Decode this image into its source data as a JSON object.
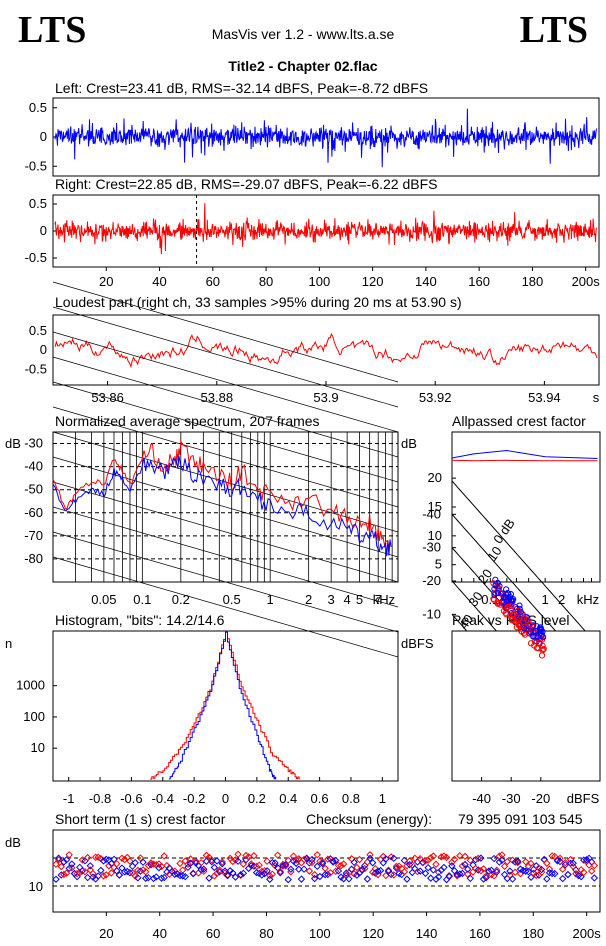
{
  "header": {
    "logo_left": "LTS",
    "logo_right": "LTS",
    "app_title": "MasVis ver 1.2 - www.lts.a.se",
    "file_title": "Title2 - Chapter 02.flac"
  },
  "chart_data": [
    {
      "id": "left-waveform",
      "type": "line",
      "title": "Left: Crest=23.41 dB, RMS=-32.14 dBFS, Peak=-8.72 dBFS",
      "ylim": [
        -1,
        1
      ],
      "yticks": [
        "0.5",
        "0",
        "-0.5"
      ],
      "color": "#0000ff",
      "duration_s": 205
    },
    {
      "id": "right-waveform",
      "type": "line",
      "title": "Right: Crest=22.85 dB, RMS=-29.07 dBFS, Peak=-6.22 dBFS",
      "ylim": [
        -1,
        1
      ],
      "yticks": [
        "0.5",
        "0",
        "-0.5"
      ],
      "xticks": [
        "20",
        "40",
        "60",
        "80",
        "100",
        "120",
        "140",
        "160",
        "180",
        "200s"
      ],
      "marker_s": 53.9,
      "color": "#ff0000",
      "duration_s": 205
    },
    {
      "id": "loudest-part",
      "type": "line",
      "title": "Loudest part (right ch, 33 samples >95% during 20 ms at 53.90 s)",
      "xlim": [
        53.85,
        53.95
      ],
      "xticks": [
        "53.86",
        "53.88",
        "53.9",
        "53.92",
        "53.94"
      ],
      "xunit": "s",
      "yticks": [
        "0.5",
        "0",
        "-0.5"
      ],
      "color": "#ff0000"
    },
    {
      "id": "spectrum",
      "type": "line",
      "title": "Normalized average spectrum, 207 frames",
      "ylabel": "dB",
      "yticks": [
        "-30",
        "-40",
        "-50",
        "-60",
        "-70",
        "-80"
      ],
      "xticks": [
        "0.05",
        "0.1",
        "0.2",
        "0.5",
        "1",
        "2",
        "3",
        "4",
        "5",
        "7"
      ],
      "xunit": "kHz",
      "series": [
        {
          "color": "#ff0000",
          "points": [
            [
              0.02,
              -45
            ],
            [
              0.025,
              -58
            ],
            [
              0.03,
              -52
            ],
            [
              0.04,
              -46
            ],
            [
              0.05,
              -48
            ],
            [
              0.06,
              -36
            ],
            [
              0.07,
              -42
            ],
            [
              0.08,
              -48
            ],
            [
              0.1,
              -36
            ],
            [
              0.12,
              -34
            ],
            [
              0.15,
              -40
            ],
            [
              0.18,
              -37
            ],
            [
              0.2,
              -32
            ],
            [
              0.25,
              -38
            ],
            [
              0.3,
              -40
            ],
            [
              0.4,
              -44
            ],
            [
              0.5,
              -47
            ],
            [
              0.6,
              -42
            ],
            [
              0.8,
              -50
            ],
            [
              1,
              -52
            ],
            [
              1.5,
              -55
            ],
            [
              2,
              -53
            ],
            [
              3,
              -60
            ],
            [
              4,
              -62
            ],
            [
              5,
              -66
            ],
            [
              6,
              -64
            ],
            [
              7,
              -70
            ],
            [
              8,
              -74
            ],
            [
              9,
              -72
            ]
          ]
        },
        {
          "color": "#0000ff",
          "points": [
            [
              0.02,
              -47
            ],
            [
              0.025,
              -60
            ],
            [
              0.03,
              -55
            ],
            [
              0.04,
              -50
            ],
            [
              0.05,
              -52
            ],
            [
              0.06,
              -42
            ],
            [
              0.07,
              -45
            ],
            [
              0.08,
              -50
            ],
            [
              0.1,
              -40
            ],
            [
              0.12,
              -39
            ],
            [
              0.15,
              -42
            ],
            [
              0.18,
              -40
            ],
            [
              0.2,
              -38
            ],
            [
              0.25,
              -43
            ],
            [
              0.3,
              -44
            ],
            [
              0.4,
              -48
            ],
            [
              0.5,
              -50
            ],
            [
              0.6,
              -49
            ],
            [
              0.8,
              -54
            ],
            [
              1,
              -56
            ],
            [
              1.5,
              -60
            ],
            [
              2,
              -60
            ],
            [
              3,
              -65
            ],
            [
              4,
              -67
            ],
            [
              5,
              -70
            ],
            [
              6,
              -70
            ],
            [
              7,
              -73
            ],
            [
              8,
              -75
            ],
            [
              9,
              -74
            ]
          ]
        }
      ]
    },
    {
      "id": "allpassed-crest",
      "type": "line",
      "title": "Allpassed crest factor",
      "ylabel": "dB",
      "yticks": [
        "20",
        "15",
        "10",
        "5"
      ],
      "xticks": [
        "0.1",
        "1",
        "2"
      ],
      "xunit": "kHz",
      "series": [
        {
          "color": "#0000ff",
          "points": [
            [
              0.02,
              23.5
            ],
            [
              0.05,
              24.2
            ],
            [
              0.2,
              24.8
            ],
            [
              1,
              23.7
            ],
            [
              5,
              23.5
            ],
            [
              9,
              23.4
            ]
          ]
        },
        {
          "color": "#ff0000",
          "points": [
            [
              0.02,
              23.1
            ],
            [
              0.05,
              23.0
            ],
            [
              0.2,
              23.1
            ],
            [
              1,
              23.0
            ],
            [
              5,
              23.0
            ],
            [
              9,
              23.0
            ]
          ]
        }
      ]
    },
    {
      "id": "histogram",
      "type": "line",
      "title": "Histogram, \"bits\": 14.2/14.6",
      "ylabel": "n",
      "yticks": [
        "1000",
        "100",
        "10"
      ],
      "xticks": [
        "-1",
        "-0.8",
        "-0.6",
        "-0.4",
        "-0.2",
        "0",
        "0.2",
        "0.4",
        "0.6",
        "0.8",
        "1"
      ],
      "series": [
        {
          "color": "#ff0000",
          "points": [
            [
              -0.48,
              1
            ],
            [
              -0.4,
              2
            ],
            [
              -0.3,
              8
            ],
            [
              -0.2,
              60
            ],
            [
              -0.1,
              800
            ],
            [
              0,
              50000
            ],
            [
              0.1,
              900
            ],
            [
              0.2,
              70
            ],
            [
              0.3,
              6
            ],
            [
              0.4,
              2
            ],
            [
              0.47,
              1
            ]
          ]
        },
        {
          "color": "#0000ff",
          "points": [
            [
              -0.36,
              1
            ],
            [
              -0.3,
              3
            ],
            [
              -0.2,
              40
            ],
            [
              -0.1,
              600
            ],
            [
              0,
              50000
            ],
            [
              0.1,
              500
            ],
            [
              0.2,
              25
            ],
            [
              0.28,
              2
            ],
            [
              0.32,
              1
            ]
          ]
        }
      ]
    },
    {
      "id": "peak-vs-rms",
      "type": "scatter",
      "title": "Peak vs RMS level",
      "ylabel": "dBFS",
      "xunit": "dBFS",
      "yticks": [
        "-10",
        "-20",
        "-30",
        "-40"
      ],
      "xticks": [
        "-40",
        "-30",
        "-20"
      ],
      "diag_labels": [
        "40",
        "30",
        "20",
        "10",
        "0 dB"
      ]
    },
    {
      "id": "short-term-crest",
      "type": "scatter",
      "title": "Short term (1 s) crest factor",
      "ylabel": "dB",
      "yticks": [
        "10"
      ],
      "xticks": [
        "20",
        "40",
        "60",
        "80",
        "100",
        "120",
        "140",
        "160",
        "180",
        "200s"
      ],
      "checksum_label": "Checksum (energy):",
      "checksum_value": "79 395 091 103 545"
    }
  ]
}
